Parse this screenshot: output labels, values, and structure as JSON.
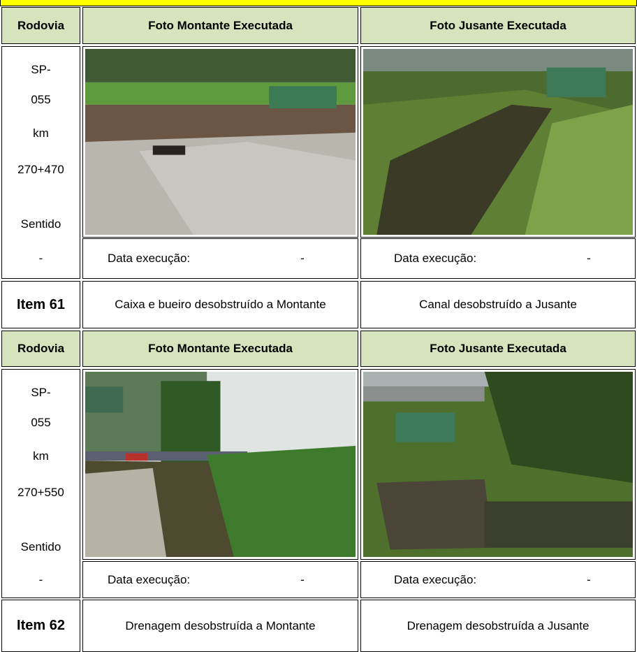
{
  "blocks": [
    {
      "headers": [
        "Rodovia",
        "Foto Montante Executada",
        "Foto Jusante Executada"
      ],
      "location": [
        "SP-",
        "055",
        "km",
        "270+470",
        "Sentido"
      ],
      "sentido_value": "-",
      "date_label_montante": "Data execução:",
      "date_value_montante": "-",
      "date_label_jusante": "Data execução:",
      "date_value_jusante": "-",
      "item": "Item 61",
      "description_montante": "Caixa e bueiro desobstruído a Montante",
      "description_jusante": "Canal desobstruído a Jusante"
    },
    {
      "headers": [
        "Rodovia",
        "Foto Montante Executada",
        "Foto Jusante Executada"
      ],
      "location": [
        "SP-",
        "055",
        "km",
        "270+550",
        "Sentido"
      ],
      "sentido_value": "-",
      "date_label_montante": "Data execução:",
      "date_value_montante": "-",
      "date_label_jusante": "Data execução:",
      "date_value_jusante": "-",
      "item": "Item 62",
      "description_montante": "Drenagem desobstruída a Montante",
      "description_jusante": "Drenagem desobstruída a Jusante"
    }
  ]
}
